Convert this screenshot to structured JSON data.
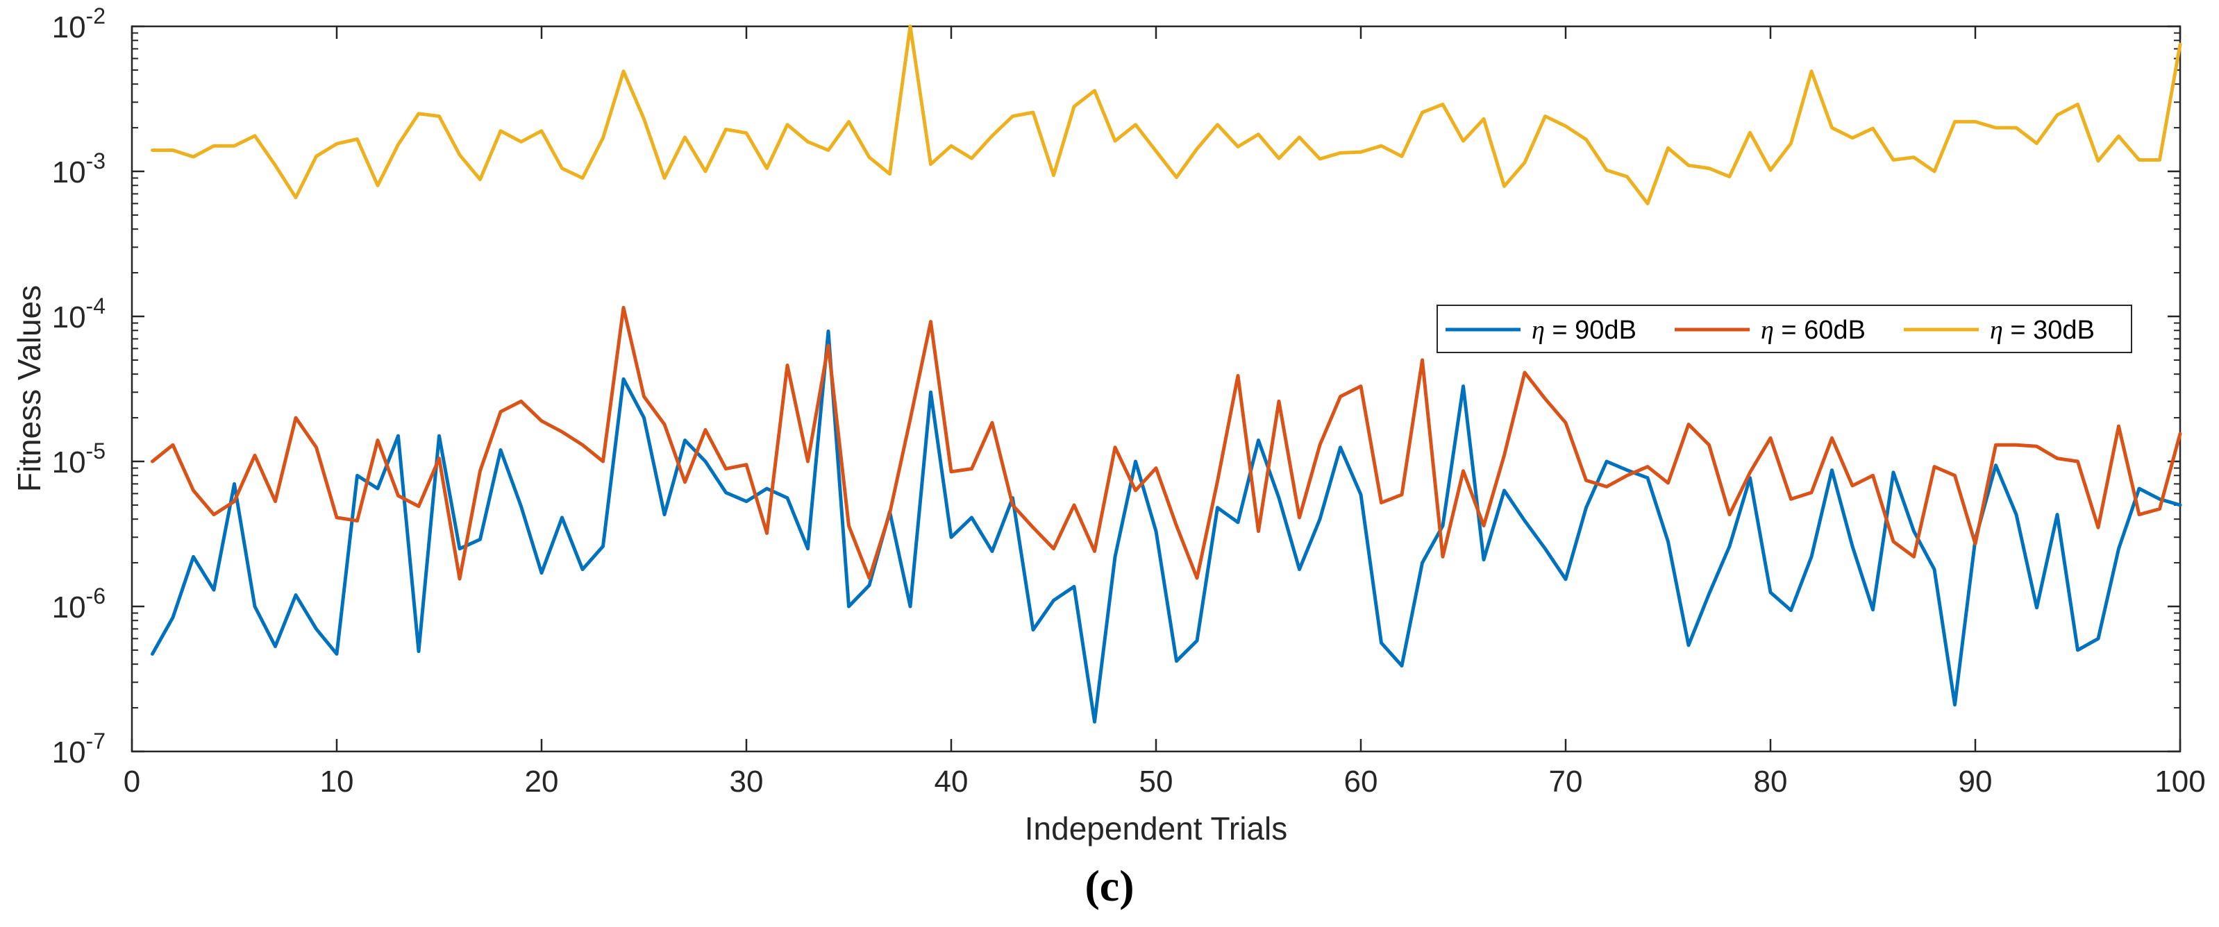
{
  "caption": "(c)",
  "chart_data": {
    "type": "line",
    "title": "",
    "xlabel": "Independent Trials",
    "ylabel": "Fitness Values",
    "xlim": [
      0,
      100
    ],
    "ylim": [
      1e-07,
      0.01
    ],
    "yscale": "log",
    "grid": false,
    "legend_position": "right, upper-middle",
    "x_ticks": [
      0,
      10,
      20,
      30,
      40,
      50,
      60,
      70,
      80,
      90,
      100
    ],
    "x_tick_labels": [
      "0",
      "10",
      "20",
      "30",
      "40",
      "50",
      "60",
      "70",
      "80",
      "90",
      "100"
    ],
    "y_ticks": [
      {
        "value": 0.01,
        "base": "10",
        "exponent": "-2"
      },
      {
        "value": 0.001,
        "base": "10",
        "exponent": "-3"
      },
      {
        "value": 0.0001,
        "base": "10",
        "exponent": "-4"
      },
      {
        "value": 1e-05,
        "base": "10",
        "exponent": "-5"
      },
      {
        "value": 1e-06,
        "base": "10",
        "exponent": "-6"
      },
      {
        "value": 1e-07,
        "base": "10",
        "exponent": "-7"
      }
    ],
    "x": [
      1,
      2,
      3,
      4,
      5,
      6,
      7,
      8,
      9,
      10,
      11,
      12,
      13,
      14,
      15,
      16,
      17,
      18,
      19,
      20,
      21,
      22,
      23,
      24,
      25,
      26,
      27,
      28,
      29,
      30,
      31,
      32,
      33,
      34,
      35,
      36,
      37,
      38,
      39,
      40,
      41,
      42,
      43,
      44,
      45,
      46,
      47,
      48,
      49,
      50,
      51,
      52,
      53,
      54,
      55,
      56,
      57,
      58,
      59,
      60,
      61,
      62,
      63,
      64,
      65,
      66,
      67,
      68,
      69,
      70,
      71,
      72,
      73,
      74,
      75,
      76,
      77,
      78,
      79,
      80,
      81,
      82,
      83,
      84,
      85,
      86,
      87,
      88,
      89,
      90,
      91,
      92,
      93,
      94,
      95,
      96,
      97,
      98,
      99,
      100
    ],
    "series": [
      {
        "name": "90dB",
        "legend_symbol": "η",
        "legend_rest": " = 90dB",
        "color": "#0072BD",
        "values": [
          4.7e-07,
          8.4e-07,
          2.2e-06,
          1.3e-06,
          7e-06,
          1e-06,
          5.3e-07,
          1.2e-06,
          7e-07,
          4.7e-07,
          8e-06,
          6.5e-06,
          1.5e-05,
          4.9e-07,
          1.5e-05,
          2.5e-06,
          2.9e-06,
          1.2e-05,
          4.9e-06,
          1.7e-06,
          4.1e-06,
          1.8e-06,
          2.6e-06,
          3.7e-05,
          2e-05,
          4.3e-06,
          1.4e-05,
          1e-05,
          6.1e-06,
          5.3e-06,
          6.5e-06,
          5.6e-06,
          2.5e-06,
          7.9e-05,
          1e-06,
          1.4e-06,
          4.5e-06,
          1e-06,
          3e-05,
          3e-06,
          4.1e-06,
          2.4e-06,
          5.6e-06,
          6.9e-07,
          1.1e-06,
          1.37e-06,
          1.6e-07,
          2.2e-06,
          1e-05,
          3.3e-06,
          4.2e-07,
          5.8e-07,
          4.8e-06,
          3.8e-06,
          1.4e-05,
          5.6e-06,
          1.8e-06,
          4e-06,
          1.25e-05,
          5.9e-06,
          5.6e-07,
          3.9e-07,
          2e-06,
          3.6e-06,
          3.3e-05,
          2.1e-06,
          6.3e-06,
          3.9e-06,
          2.5e-06,
          1.54e-06,
          4.8e-06,
          1e-05,
          8.7e-06,
          7.7e-06,
          2.8e-06,
          5.4e-07,
          1.22e-06,
          2.6e-06,
          7.7e-06,
          1.25e-06,
          9.4e-07,
          2.2e-06,
          8.7e-06,
          2.6e-06,
          9.5e-07,
          8.4e-06,
          3.3e-06,
          1.8e-06,
          2.1e-07,
          2.9e-06,
          9.4e-06,
          4.3e-06,
          9.8e-07,
          4.3e-06,
          5e-07,
          6e-07,
          2.5e-06,
          6.5e-06,
          5.5e-06,
          5e-06
        ]
      },
      {
        "name": "60dB",
        "legend_symbol": "η",
        "legend_rest": " = 60dB",
        "color": "#D95319",
        "values": [
          1e-05,
          1.3e-05,
          6.3e-06,
          4.3e-06,
          5.3e-06,
          1.1e-05,
          5.3e-06,
          2e-05,
          1.25e-05,
          4.1e-06,
          3.9e-06,
          1.4e-05,
          5.8e-06,
          4.9e-06,
          1.05e-05,
          1.55e-06,
          8.6e-06,
          2.2e-05,
          2.6e-05,
          1.9e-05,
          1.6e-05,
          1.3e-05,
          1e-05,
          0.000115,
          2.8e-05,
          1.8e-05,
          7.2e-06,
          1.65e-05,
          8.9e-06,
          9.5e-06,
          3.2e-06,
          4.6e-05,
          1e-05,
          6.3e-05,
          3.6e-06,
          1.57e-06,
          4.4e-06,
          1.95e-05,
          9.2e-05,
          8.5e-06,
          8.9e-06,
          1.85e-05,
          5e-06,
          3.5e-06,
          2.5e-06,
          5e-06,
          2.4e-06,
          1.25e-05,
          6.3e-06,
          9e-06,
          3.6e-06,
          1.57e-06,
          7.3e-06,
          3.9e-05,
          3.3e-06,
          2.6e-05,
          4.1e-06,
          1.3e-05,
          2.8e-05,
          3.3e-05,
          5.2e-06,
          5.9e-06,
          5e-05,
          2.2e-06,
          8.6e-06,
          3.6e-06,
          1.1e-05,
          4.1e-05,
          2.7e-05,
          1.85e-05,
          7.4e-06,
          6.7e-06,
          8e-06,
          9.2e-06,
          7.1e-06,
          1.8e-05,
          1.3e-05,
          4.3e-06,
          8.4e-06,
          1.45e-05,
          5.5e-06,
          6.1e-06,
          1.45e-05,
          6.8e-06,
          8e-06,
          2.8e-06,
          2.2e-06,
          9.2e-06,
          8e-06,
          2.7e-06,
          1.3e-05,
          1.3e-05,
          1.27e-05,
          1.05e-05,
          1e-05,
          3.5e-06,
          1.75e-05,
          4.3e-06,
          4.7e-06,
          1.55e-05
        ]
      },
      {
        "name": "30dB",
        "legend_symbol": "η",
        "legend_rest": " = 30dB",
        "color": "#EDB120",
        "values": [
          0.0014,
          0.0014,
          0.00126,
          0.0015,
          0.0015,
          0.00176,
          0.0011,
          0.00066,
          0.00127,
          0.00155,
          0.00167,
          0.0008,
          0.00153,
          0.0025,
          0.0024,
          0.0013,
          0.00088,
          0.0019,
          0.0016,
          0.0019,
          0.00105,
          0.0009,
          0.0017,
          0.0049,
          0.0023,
          0.0009,
          0.00172,
          0.001,
          0.00195,
          0.00184,
          0.00105,
          0.0021,
          0.0016,
          0.0014,
          0.0022,
          0.00125,
          0.00096,
          0.01,
          0.00112,
          0.0015,
          0.00123,
          0.00176,
          0.0024,
          0.00255,
          0.00094,
          0.0028,
          0.0036,
          0.00162,
          0.0021,
          0.00138,
          0.00091,
          0.00143,
          0.0021,
          0.00148,
          0.0018,
          0.00123,
          0.00172,
          0.00122,
          0.00134,
          0.00136,
          0.0015,
          0.00127,
          0.00255,
          0.0029,
          0.00162,
          0.0023,
          0.00079,
          0.00115,
          0.0024,
          0.00205,
          0.00166,
          0.00102,
          0.00092,
          0.0006,
          0.00145,
          0.0011,
          0.00105,
          0.00092,
          0.00185,
          0.00102,
          0.00156,
          0.0049,
          0.002,
          0.0017,
          0.00198,
          0.0012,
          0.00125,
          0.001,
          0.0022,
          0.0022,
          0.002,
          0.002,
          0.00156,
          0.00245,
          0.0029,
          0.00118,
          0.00175,
          0.0012,
          0.0012,
          0.0075
        ]
      }
    ]
  }
}
